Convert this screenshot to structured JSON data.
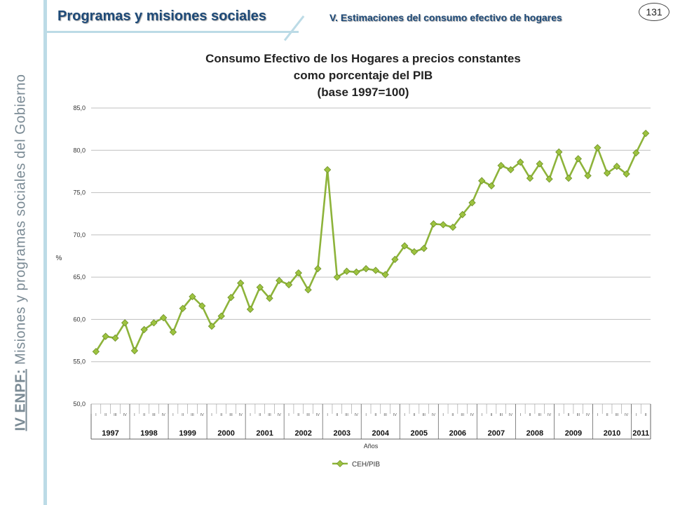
{
  "sidebar": {
    "brand": "IV ENPF:",
    "text": " Misiones y programas sociales del Gobierno"
  },
  "header": {
    "title": "Programas y misiones sociales",
    "subtitle": "V. Estimaciones del consumo efectivo de hogares",
    "page_number": "131"
  },
  "colors": {
    "line": "#8db33a",
    "marker": "#9dc33f",
    "grid": "#bfbfbf",
    "header_text": "#1e4a78",
    "accent": "#bcdbe6"
  },
  "chart_data": {
    "type": "line",
    "title_lines": [
      "Consumo Efectivo de los Hogares a precios constantes",
      "como porcentaje del PIB",
      "(base 1997=100)"
    ],
    "ylabel": "%",
    "xlabel": "Años",
    "ylim": [
      50,
      85
    ],
    "yticks": [
      "50,0",
      "55,0",
      "60,0",
      "65,0",
      "70,0",
      "75,0",
      "80,0",
      "85,0"
    ],
    "grid": true,
    "legend_position": "bottom",
    "quarter_labels": [
      "I",
      "II",
      "III",
      "IV"
    ],
    "years": [
      "1997",
      "1998",
      "1999",
      "2000",
      "2001",
      "2002",
      "2003",
      "2004",
      "2005",
      "2006",
      "2007",
      "2008",
      "2009",
      "2010",
      "2011"
    ],
    "last_year_quarters": 2,
    "series": [
      {
        "name": "CEH/PIB",
        "values": [
          56.2,
          58.0,
          57.8,
          59.6,
          56.3,
          58.8,
          59.6,
          60.2,
          58.5,
          61.3,
          62.7,
          61.6,
          59.2,
          60.4,
          62.6,
          64.3,
          61.2,
          63.8,
          62.5,
          64.6,
          64.1,
          65.5,
          63.5,
          66.0,
          77.7,
          65.0,
          65.7,
          65.6,
          66.0,
          65.8,
          65.3,
          67.1,
          68.7,
          68.0,
          68.4,
          71.3,
          71.2,
          70.9,
          72.4,
          73.8,
          76.4,
          75.8,
          78.2,
          77.7,
          78.6,
          76.7,
          78.4,
          76.6,
          79.8,
          76.7,
          79.0,
          77.0,
          80.3,
          77.3,
          78.1,
          77.2,
          79.7,
          82.0
        ]
      }
    ]
  }
}
